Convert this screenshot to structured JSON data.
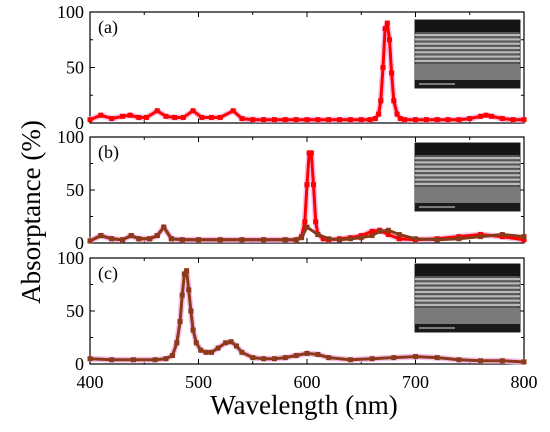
{
  "chart_data": [
    {
      "type": "scatter",
      "panel_label": "(a)",
      "xlim": [
        400,
        800
      ],
      "ylim": [
        0,
        100
      ],
      "series": [
        {
          "color": "#ff0000",
          "x": [
            400,
            410,
            420,
            430,
            437,
            445,
            452,
            462,
            470,
            478,
            486,
            495,
            503,
            512,
            520,
            532,
            540,
            550,
            560,
            570,
            580,
            590,
            600,
            610,
            620,
            630,
            640,
            650,
            658,
            663,
            666,
            668,
            670,
            672,
            674,
            676,
            678,
            680,
            683,
            686,
            690,
            700,
            710,
            720,
            730,
            740,
            750,
            760,
            765,
            770,
            780,
            790,
            800
          ],
          "y": [
            3,
            7,
            4,
            6,
            7,
            5,
            5,
            11,
            6,
            5,
            5,
            11,
            5,
            5,
            5,
            11,
            4,
            3,
            3,
            3,
            3,
            3,
            3,
            3,
            3,
            3,
            3,
            3,
            3,
            4,
            8,
            20,
            50,
            85,
            90,
            75,
            45,
            20,
            8,
            4,
            3,
            3,
            3,
            3,
            3,
            3,
            4,
            6,
            7,
            6,
            4,
            3,
            3
          ]
        }
      ]
    },
    {
      "type": "scatter",
      "panel_label": "(b)",
      "xlim": [
        400,
        800
      ],
      "ylim": [
        0,
        100
      ],
      "series": [
        {
          "color": "#ff0000",
          "x": [
            400,
            410,
            420,
            430,
            438,
            445,
            455,
            462,
            468,
            475,
            485,
            500,
            520,
            540,
            560,
            580,
            590,
            595,
            598,
            600,
            602,
            604,
            606,
            608,
            610,
            615,
            620,
            630,
            640,
            650,
            660,
            667,
            675,
            685,
            700,
            720,
            740,
            760,
            780,
            800
          ],
          "y": [
            2,
            7,
            4,
            3,
            7,
            4,
            4,
            7,
            15,
            4,
            3,
            3,
            3,
            3,
            3,
            3,
            3,
            6,
            20,
            55,
            85,
            85,
            55,
            20,
            8,
            4,
            3,
            4,
            5,
            7,
            11,
            12,
            8,
            4,
            3,
            4,
            6,
            8,
            6,
            3
          ]
        },
        {
          "color": "#8b3a1a",
          "x": [
            400,
            410,
            420,
            430,
            438,
            445,
            455,
            462,
            468,
            475,
            485,
            500,
            520,
            540,
            560,
            580,
            590,
            595,
            600,
            610,
            620,
            630,
            640,
            650,
            660,
            667,
            675,
            685,
            700,
            720,
            740,
            760,
            780,
            800
          ],
          "y": [
            2,
            7,
            4,
            3,
            7,
            4,
            4,
            7,
            15,
            4,
            3,
            3,
            3,
            3,
            3,
            3,
            3,
            5,
            15,
            8,
            4,
            3,
            4,
            5,
            7,
            11,
            12,
            8,
            4,
            3,
            4,
            6,
            8,
            6
          ]
        }
      ]
    },
    {
      "type": "scatter",
      "panel_label": "(c)",
      "xlim": [
        400,
        800
      ],
      "ylim": [
        0,
        100
      ],
      "series": [
        {
          "color": "#8b3a1a",
          "x": [
            400,
            420,
            440,
            460,
            470,
            476,
            480,
            483,
            485,
            487,
            489,
            491,
            493,
            495,
            498,
            502,
            507,
            512,
            518,
            525,
            530,
            535,
            540,
            550,
            560,
            570,
            580,
            590,
            600,
            610,
            620,
            640,
            660,
            680,
            700,
            720,
            740,
            760,
            780,
            800
          ],
          "y": [
            5,
            4,
            4,
            4,
            5,
            8,
            20,
            40,
            65,
            85,
            88,
            70,
            50,
            32,
            20,
            13,
            11,
            11,
            15,
            20,
            21,
            17,
            11,
            6,
            5,
            5,
            6,
            8,
            10,
            9,
            6,
            4,
            5,
            6,
            7,
            6,
            4,
            3,
            3,
            2
          ]
        }
      ]
    }
  ],
  "xlabel": "Wavelength (nm)",
  "ylabel": "Absorptance (%)",
  "xticks": [
    "400",
    "500",
    "600",
    "700",
    "800"
  ],
  "yticks": [
    "0",
    "50",
    "100"
  ]
}
